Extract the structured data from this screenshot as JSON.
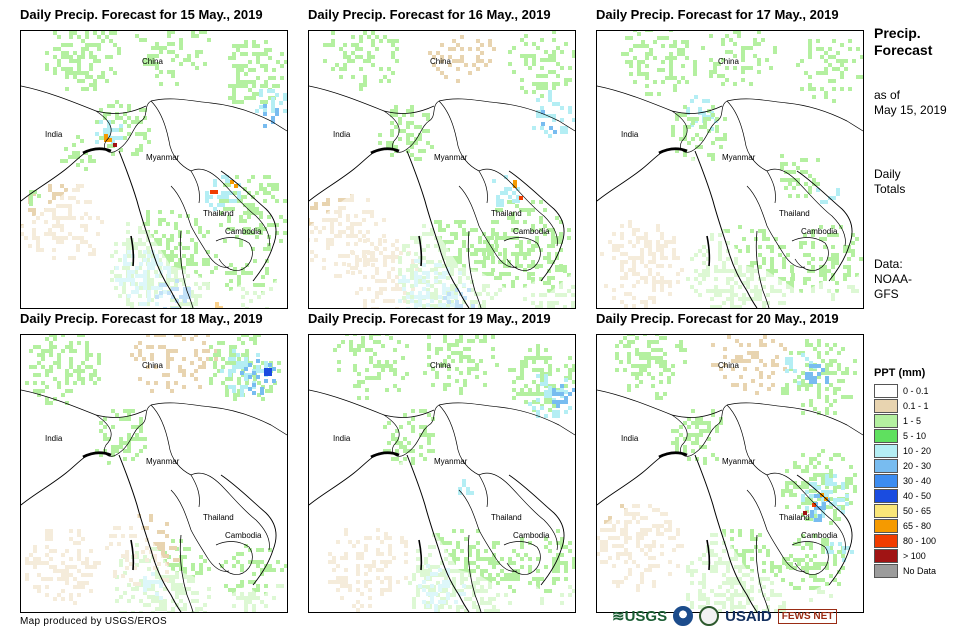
{
  "panels": [
    {
      "title": "Daily Precip. Forecast for 15 May., 2019",
      "labels": [
        "China",
        "India",
        "Myanmar",
        "Thailand",
        "Cambodia"
      ]
    },
    {
      "title": "Daily Precip. Forecast for 16 May., 2019",
      "labels": [
        "China",
        "India",
        "Myanmar",
        "Thailand",
        "Cambodia"
      ]
    },
    {
      "title": "Daily Precip. Forecast for 17 May., 2019",
      "labels": [
        "China",
        "India",
        "Myanmar",
        "Thailand",
        "Cambodia"
      ]
    },
    {
      "title": "Daily Precip. Forecast for 18 May., 2019",
      "labels": [
        "China",
        "India",
        "Myanmar",
        "Thailand",
        "Cambodia"
      ]
    },
    {
      "title": "Daily Precip. Forecast for 19 May., 2019",
      "labels": [
        "China",
        "India",
        "Myanmar",
        "Thailand",
        "Cambodia"
      ]
    },
    {
      "title": "Daily Precip. Forecast for 20 May., 2019",
      "labels": [
        "China",
        "India",
        "Myanmar",
        "Thailand",
        "Cambodia"
      ]
    }
  ],
  "sidebar": {
    "title_line1": "Precip.",
    "title_line2": "Forecast",
    "asof_line1": "as of",
    "asof_line2": "May 15, 2019",
    "daily_line1": "Daily",
    "daily_line2": "Totals",
    "data_line1": "Data:",
    "data_line2": "NOAA-",
    "data_line3": "GFS"
  },
  "legend": {
    "title": "PPT (mm)",
    "items": [
      {
        "label": "0 - 0.1",
        "color": "#ffffff"
      },
      {
        "label": "0.1 - 1",
        "color": "#e8d4b0"
      },
      {
        "label": "1 - 5",
        "color": "#b4f0a0"
      },
      {
        "label": "5 - 10",
        "color": "#5fe05f"
      },
      {
        "label": "10 - 20",
        "color": "#b4eef4"
      },
      {
        "label": "20 - 30",
        "color": "#78bcf0"
      },
      {
        "label": "30 - 40",
        "color": "#3c8cf0"
      },
      {
        "label": "40 - 50",
        "color": "#1a4ce0"
      },
      {
        "label": "50 - 65",
        "color": "#fae678"
      },
      {
        "label": "65 - 80",
        "color": "#f59a00"
      },
      {
        "label": "80 - 100",
        "color": "#f03c00"
      },
      {
        "label": "> 100",
        "color": "#a01414"
      },
      {
        "label": "No Data",
        "color": "#9c9c9c"
      }
    ]
  },
  "footer": {
    "credit": "Map produced by USGS/EROS"
  },
  "logos": {
    "usgs": "USGS",
    "usaid": "USAID",
    "fews": "FEWS NET"
  }
}
